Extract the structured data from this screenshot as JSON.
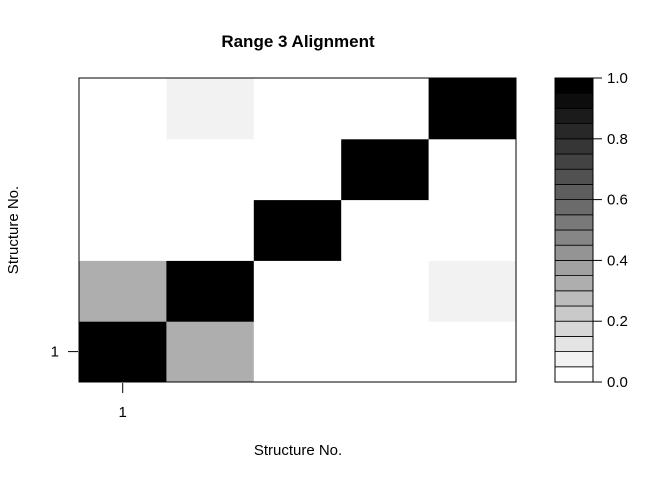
{
  "chart_data": {
    "type": "heatmap",
    "title": "Range 3 Alignment",
    "xlabel": "Structure No.",
    "ylabel": "Structure No.",
    "n_cols": 5,
    "n_rows": 5,
    "x_ticks": [
      {
        "index": 1,
        "label": "1"
      }
    ],
    "y_ticks": [
      {
        "index": 1,
        "label": "1"
      }
    ],
    "colorbar": {
      "range": [
        0,
        1
      ],
      "ticks": [
        "0.0",
        "0.2",
        "0.4",
        "0.6",
        "0.8",
        "1.0"
      ],
      "tick_values": [
        0,
        0.2,
        0.4,
        0.6,
        0.8,
        1.0
      ],
      "levels": 20
    },
    "cells_note": "rows listed bottom to top (row 1 = bottom), columns left to right",
    "cells": [
      [
        1.0,
        0.3,
        0.0,
        0.0,
        0.0
      ],
      [
        0.3,
        1.0,
        0.0,
        0.0,
        0.08
      ],
      [
        0.0,
        0.0,
        1.0,
        0.0,
        0.0
      ],
      [
        0.0,
        0.0,
        0.0,
        1.0,
        0.0
      ],
      [
        0.0,
        0.08,
        0.0,
        0.0,
        1.0
      ]
    ]
  }
}
